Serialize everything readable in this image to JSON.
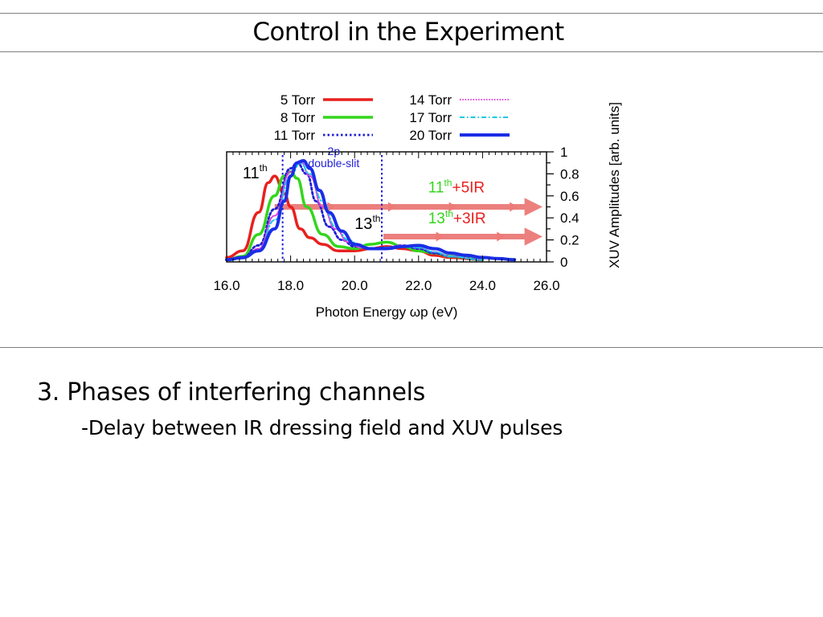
{
  "slide": {
    "title": "Control in the Experiment",
    "bullet_main": "3. Phases of interfering channels",
    "bullet_sub": "-Delay between IR dressing field and XUV pulses"
  },
  "chart_data": {
    "type": "line",
    "title": "",
    "xlabel": "Photon Energy ωp (eV)",
    "ylabel": "XUV Amplitudes [arb. units]",
    "xlim": [
      16.0,
      26.0
    ],
    "ylim": [
      0,
      1
    ],
    "x_ticks": [
      "16.0",
      "18.0",
      "20.0",
      "22.0",
      "24.0",
      "26.0"
    ],
    "y_ticks": [
      "0",
      "0.2",
      "0.4",
      "0.6",
      "0.8",
      "1"
    ],
    "y_axis_side": "right",
    "legend_placement": "top, above plot",
    "series": [
      {
        "name": "5 Torr",
        "color": "#e8201e",
        "dash": "solid",
        "width": 3.5,
        "x": [
          16.0,
          16.5,
          17.0,
          17.3,
          17.5,
          17.8,
          18.0,
          18.3,
          18.6,
          19.0,
          19.5,
          20.0,
          20.5,
          21.0,
          21.5,
          22.0,
          22.5,
          23.0,
          24.0
        ],
        "y": [
          0.04,
          0.1,
          0.45,
          0.72,
          0.78,
          0.62,
          0.5,
          0.3,
          0.22,
          0.16,
          0.1,
          0.1,
          0.12,
          0.14,
          0.12,
          0.1,
          0.06,
          0.04,
          0.02
        ]
      },
      {
        "name": "8 Torr",
        "color": "#33d61c",
        "dash": "solid",
        "width": 3.5,
        "x": [
          16.0,
          16.5,
          17.0,
          17.5,
          17.8,
          18.0,
          18.2,
          18.5,
          19.0,
          19.5,
          20.0,
          20.5,
          21.0,
          21.5,
          22.0,
          22.5,
          23.0,
          24.0
        ],
        "y": [
          0.02,
          0.05,
          0.25,
          0.6,
          0.78,
          0.82,
          0.76,
          0.5,
          0.25,
          0.14,
          0.12,
          0.16,
          0.18,
          0.14,
          0.1,
          0.08,
          0.05,
          0.02
        ]
      },
      {
        "name": "11 Torr",
        "color": "#1f1fd6",
        "dash": "dotted",
        "width": 2.8,
        "x": [
          16.0,
          16.5,
          17.0,
          17.5,
          18.0,
          18.2,
          18.5,
          18.8,
          19.2,
          19.6,
          20.0,
          20.5,
          21.0,
          21.5,
          22.0,
          22.5,
          23.0,
          24.0
        ],
        "y": [
          0.02,
          0.04,
          0.15,
          0.48,
          0.85,
          0.9,
          0.8,
          0.55,
          0.32,
          0.2,
          0.14,
          0.12,
          0.13,
          0.15,
          0.12,
          0.08,
          0.05,
          0.02
        ]
      },
      {
        "name": "14 Torr",
        "color": "#e040e0",
        "dash": "dotted-fine",
        "width": 2.0,
        "x": [
          16.0,
          16.5,
          17.0,
          17.5,
          18.0,
          18.3,
          18.6,
          19.0,
          19.4,
          19.8,
          20.2,
          20.6,
          21.0,
          21.5,
          22.0,
          22.5,
          23.0,
          24.0
        ],
        "y": [
          0.02,
          0.03,
          0.12,
          0.42,
          0.82,
          0.92,
          0.78,
          0.5,
          0.3,
          0.18,
          0.13,
          0.12,
          0.13,
          0.15,
          0.13,
          0.09,
          0.05,
          0.02
        ]
      },
      {
        "name": "17 Torr",
        "color": "#19c8e6",
        "dash": "dashdot",
        "width": 2.0,
        "x": [
          16.0,
          16.5,
          17.0,
          17.5,
          18.0,
          18.3,
          18.6,
          19.0,
          19.4,
          19.8,
          20.2,
          20.6,
          21.0,
          21.5,
          22.0,
          22.5,
          23.0,
          24.0
        ],
        "y": [
          0.02,
          0.03,
          0.1,
          0.38,
          0.78,
          0.9,
          0.8,
          0.55,
          0.32,
          0.2,
          0.14,
          0.12,
          0.13,
          0.14,
          0.13,
          0.09,
          0.05,
          0.02
        ]
      },
      {
        "name": "20 Torr",
        "color": "#1a2ee6",
        "dash": "solid",
        "width": 4.0,
        "x": [
          16.0,
          16.5,
          17.0,
          17.5,
          17.8,
          18.0,
          18.2,
          18.4,
          18.6,
          18.9,
          19.2,
          19.6,
          20.0,
          20.5,
          21.0,
          21.5,
          22.0,
          22.5,
          23.0,
          23.5,
          24.0,
          24.5,
          25.0
        ],
        "y": [
          0.02,
          0.04,
          0.1,
          0.3,
          0.55,
          0.78,
          0.9,
          0.92,
          0.85,
          0.65,
          0.45,
          0.28,
          0.16,
          0.12,
          0.12,
          0.14,
          0.15,
          0.12,
          0.08,
          0.06,
          0.04,
          0.03,
          0.02
        ]
      }
    ],
    "annotations": [
      {
        "kind": "order-label",
        "base": "11",
        "sup": "th",
        "x": 16.5,
        "y": 0.76,
        "color": "#000000"
      },
      {
        "kind": "order-label",
        "base": "13",
        "sup": "th",
        "x": 20.0,
        "y": 0.3,
        "color": "#000000"
      },
      {
        "kind": "slit-label",
        "lines": [
          "2p",
          "double-slit"
        ],
        "x": 19.35,
        "y": 0.97,
        "color": "#1f1fd6"
      },
      {
        "kind": "channel-label",
        "base": "11",
        "sup": "th",
        "suffix": "+5IR",
        "x": 22.3,
        "y": 0.63,
        "base_color": "#33d61c",
        "suffix_color": "#e8201e"
      },
      {
        "kind": "channel-label",
        "base": "13",
        "sup": "th",
        "suffix": "+3IR",
        "x": 22.3,
        "y": 0.35,
        "base_color": "#33d61c",
        "suffix_color": "#e8201e"
      }
    ],
    "vertical_lines": [
      {
        "x": 17.75,
        "color": "#1f1fd6",
        "dash": "dotted"
      },
      {
        "x": 20.85,
        "color": "#1f1fd6",
        "dash": "dotted"
      }
    ],
    "arrows": [
      {
        "x_from": 17.5,
        "x_to": 25.8,
        "y": 0.5,
        "color": "#ec7a78"
      },
      {
        "x_from": 20.9,
        "x_to": 25.8,
        "y": 0.23,
        "color": "#ec7a78"
      }
    ]
  }
}
